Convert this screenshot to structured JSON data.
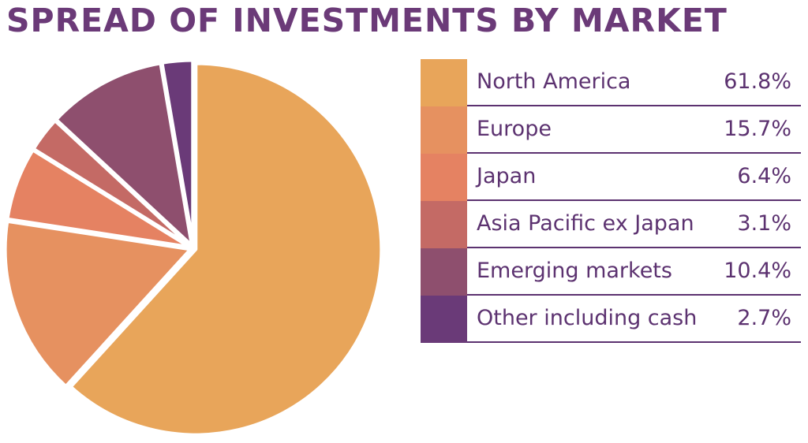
{
  "chart_data": {
    "type": "pie",
    "title": "SPREAD OF INVESTMENTS BY MARKET",
    "categories": [
      "North America",
      "Europe",
      "Japan",
      "Asia Pacific ex Japan",
      "Emerging markets",
      "Other including cash"
    ],
    "values": [
      61.8,
      15.7,
      6.4,
      3.1,
      10.4,
      2.7
    ],
    "value_labels": [
      "61.8%",
      "15.7%",
      "6.4%",
      "3.1%",
      "10.4%",
      "2.7%"
    ],
    "colors": [
      "#e8a55a",
      "#e69160",
      "#e58262",
      "#c46a65",
      "#8e4f6e",
      "#6a3a78"
    ]
  }
}
